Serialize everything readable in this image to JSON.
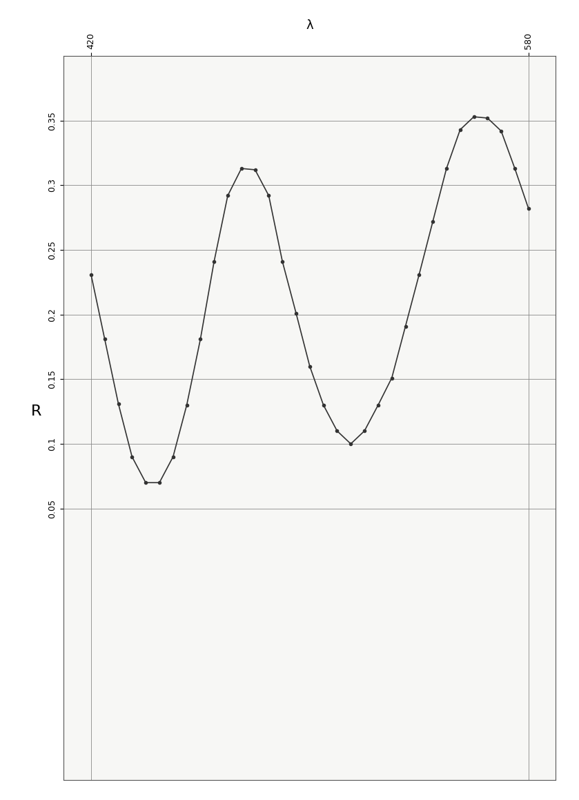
{
  "chart_data": {
    "type": "line",
    "x_label": "λ",
    "y_label": "R",
    "x": [
      420,
      425,
      430,
      435,
      440,
      445,
      450,
      455,
      460,
      465,
      470,
      475,
      480,
      485,
      490,
      495,
      500,
      505,
      510,
      515,
      520,
      525,
      530,
      535,
      540,
      545,
      550,
      555,
      560,
      565,
      570,
      575,
      580
    ],
    "values": [
      0.231,
      0.181,
      0.131,
      0.09,
      0.07,
      0.07,
      0.09,
      0.13,
      0.181,
      0.241,
      0.292,
      0.313,
      0.312,
      0.292,
      0.241,
      0.201,
      0.16,
      0.13,
      0.11,
      0.1,
      0.11,
      0.13,
      0.151,
      0.191,
      0.231,
      0.272,
      0.313,
      0.343,
      0.353,
      0.352,
      0.342,
      0.313,
      0.282
    ],
    "color": "#333333",
    "marker": "o",
    "line_style": "solid",
    "xlim": [
      410,
      590
    ],
    "xticks": [
      420,
      580
    ],
    "ylim": [
      -0.16,
      0.4
    ],
    "yticks": [
      0.05,
      0.1,
      0.15,
      0.2,
      0.25,
      0.3,
      0.35
    ],
    "grid": true
  }
}
